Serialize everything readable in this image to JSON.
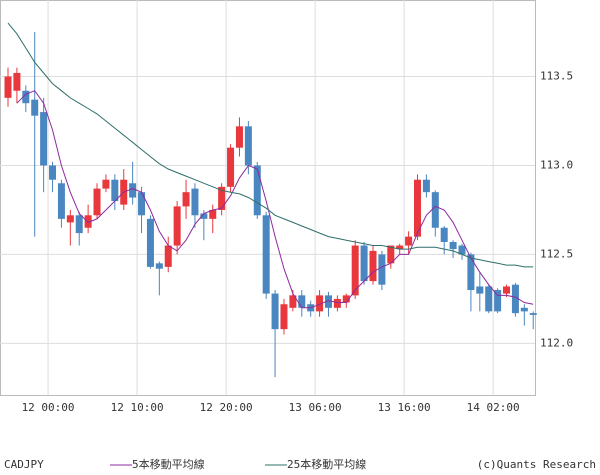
{
  "chart_data": {
    "type": "candlestick",
    "symbol": "CADJPY",
    "credit": "(c)Quants Research",
    "up_color": "#e8383d",
    "down_color": "#4a86bf",
    "grid": true,
    "xlim": [
      -0.9,
      59.2
    ],
    "xticks": [
      {
        "value": 4.5,
        "label": "12 00:00"
      },
      {
        "value": 14.5,
        "label": "12 10:00"
      },
      {
        "value": 24.5,
        "label": "12 20:00"
      },
      {
        "value": 34.5,
        "label": "13 06:00"
      },
      {
        "value": 44.5,
        "label": "13 16:00"
      },
      {
        "value": 54.5,
        "label": "14 02:00"
      }
    ],
    "ylim": [
      111.71,
      113.93
    ],
    "yticks": [
      {
        "value": 112,
        "label": "112.0"
      },
      112.5,
      {
        "value": 113,
        "label": "113.0"
      },
      113.5
    ],
    "open": [
      113.38,
      113.42,
      113.42,
      113.37,
      113.3,
      113.0,
      112.9,
      112.68,
      112.72,
      112.65,
      112.72,
      112.87,
      112.92,
      112.78,
      112.9,
      112.85,
      112.7,
      112.45,
      112.43,
      112.55,
      112.77,
      112.87,
      112.73,
      112.7,
      112.75,
      112.88,
      113.1,
      113.22,
      113.0,
      112.72,
      112.28,
      112.08,
      112.2,
      112.27,
      112.22,
      112.18,
      112.27,
      112.2,
      112.23,
      112.27,
      112.55,
      112.35,
      112.5,
      112.45,
      112.53,
      112.55,
      112.6,
      112.92,
      112.85,
      112.65,
      112.57,
      112.55,
      112.5,
      112.32,
      112.32,
      112.3,
      112.28,
      112.33,
      112.2,
      112.17
    ],
    "high": [
      113.55,
      113.55,
      113.45,
      113.75,
      113.38,
      113.02,
      112.92,
      112.75,
      112.74,
      112.78,
      112.9,
      112.95,
      112.95,
      112.98,
      113.02,
      112.88,
      112.72,
      112.46,
      112.6,
      112.8,
      112.92,
      112.9,
      112.75,
      112.78,
      112.9,
      113.12,
      113.27,
      113.25,
      113.02,
      112.74,
      112.3,
      112.25,
      112.3,
      112.3,
      112.24,
      112.3,
      112.29,
      112.27,
      112.28,
      112.58,
      112.57,
      112.55,
      112.52,
      112.55,
      112.56,
      112.63,
      112.95,
      112.95,
      112.86,
      112.66,
      112.58,
      112.56,
      112.51,
      112.4,
      112.33,
      112.31,
      112.33,
      112.34,
      112.22,
      112.18
    ],
    "low": [
      113.33,
      113.35,
      113.3,
      112.6,
      112.85,
      112.85,
      112.65,
      112.55,
      112.55,
      112.62,
      112.7,
      112.85,
      112.75,
      112.75,
      112.78,
      112.62,
      112.42,
      112.27,
      112.4,
      112.5,
      112.7,
      112.65,
      112.58,
      112.62,
      112.72,
      112.85,
      113.05,
      112.95,
      112.7,
      112.25,
      111.81,
      112.05,
      112.18,
      112.15,
      112.15,
      112.15,
      112.15,
      112.18,
      112.2,
      112.25,
      112.33,
      112.33,
      112.3,
      112.42,
      112.5,
      112.5,
      112.58,
      112.82,
      112.6,
      112.5,
      112.48,
      112.47,
      112.18,
      112.18,
      112.17,
      112.17,
      112.26,
      112.15,
      112.1,
      112.08
    ],
    "close": [
      113.5,
      113.52,
      113.35,
      113.28,
      113.0,
      112.92,
      112.7,
      112.72,
      112.62,
      112.72,
      112.87,
      112.92,
      112.8,
      112.92,
      112.82,
      112.72,
      112.43,
      112.42,
      112.55,
      112.77,
      112.85,
      112.72,
      112.7,
      112.75,
      112.88,
      113.1,
      113.22,
      113.0,
      112.72,
      112.28,
      112.08,
      112.22,
      112.27,
      112.2,
      112.18,
      112.27,
      112.2,
      112.25,
      112.27,
      112.55,
      112.35,
      112.52,
      112.33,
      112.55,
      112.55,
      112.6,
      112.92,
      112.85,
      112.65,
      112.57,
      112.53,
      112.5,
      112.3,
      112.28,
      112.18,
      112.18,
      112.32,
      112.17,
      112.18,
      112.16
    ],
    "series": [
      {
        "name": "5本移動平均線",
        "color": "#8e2a9e",
        "values": [
          null,
          113.35,
          113.4,
          113.42,
          113.35,
          113.2,
          113.0,
          112.85,
          112.73,
          112.68,
          112.7,
          112.75,
          112.8,
          112.85,
          112.87,
          112.85,
          112.75,
          112.63,
          112.55,
          112.52,
          112.58,
          112.67,
          112.73,
          112.75,
          112.76,
          112.83,
          112.93,
          113.0,
          112.98,
          112.8,
          112.6,
          112.42,
          112.28,
          112.2,
          112.2,
          112.22,
          112.24,
          112.23,
          112.23,
          112.3,
          112.35,
          112.4,
          112.43,
          112.45,
          112.5,
          112.5,
          112.62,
          112.72,
          112.77,
          112.75,
          112.68,
          112.58,
          112.48,
          112.4,
          112.33,
          112.27,
          112.27,
          112.26,
          112.23,
          112.22
        ]
      },
      {
        "name": "25本移動平均線",
        "color": "#2f6f6a",
        "values": [
          113.8,
          113.74,
          113.66,
          113.58,
          113.52,
          113.46,
          113.42,
          113.38,
          113.35,
          113.32,
          113.29,
          113.25,
          113.21,
          113.17,
          113.13,
          113.09,
          113.05,
          113.01,
          112.98,
          112.96,
          112.94,
          112.92,
          112.9,
          112.88,
          112.86,
          112.85,
          112.84,
          112.82,
          112.79,
          112.76,
          112.72,
          112.7,
          112.68,
          112.66,
          112.64,
          112.62,
          112.6,
          112.59,
          112.58,
          112.57,
          112.56,
          112.55,
          112.55,
          112.54,
          112.53,
          112.53,
          112.54,
          112.54,
          112.54,
          112.53,
          112.52,
          112.5,
          112.48,
          112.47,
          112.46,
          112.45,
          112.44,
          112.44,
          112.43,
          112.43
        ]
      }
    ]
  }
}
